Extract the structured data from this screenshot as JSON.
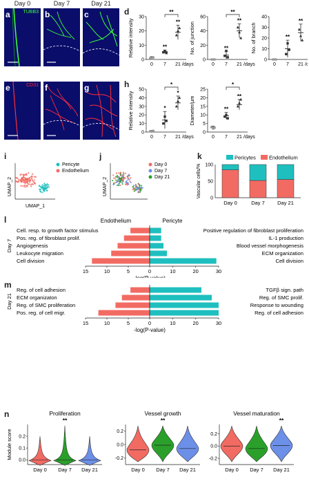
{
  "colors": {
    "day0": "#f26b63",
    "day7": "#2aa02b",
    "day21": "#6c8fe8",
    "pericyte": "#1fbfbf",
    "endothelium": "#f26b63",
    "tubb3": "#3cff3c",
    "cd31": "#ff2d3c",
    "nuclei": "#0a0d6a"
  },
  "micrographs": {
    "days": [
      "Day 0",
      "Day 7",
      "Day 21"
    ],
    "panels": [
      {
        "letter": "a",
        "stain": "TUBB3",
        "day_index": 0
      },
      {
        "letter": "b",
        "stain": "",
        "day_index": 1
      },
      {
        "letter": "c",
        "stain": "",
        "day_index": 2
      },
      {
        "letter": "e",
        "stain": "CD31",
        "day_index": 0
      },
      {
        "letter": "f",
        "stain": "",
        "day_index": 1
      },
      {
        "letter": "g",
        "stain": "",
        "day_index": 2
      }
    ]
  },
  "panel_d": {
    "letter": "d",
    "x_ticks": [
      "0",
      "7",
      "21"
    ],
    "x_unit": "/days",
    "plots": [
      {
        "ylabel": "Relative intensity",
        "y_ticks": [
          "0",
          "10",
          "20",
          "30"
        ],
        "ylim": [
          0,
          30
        ],
        "points": [
          [
            1,
            0.5,
            1.5
          ],
          [
            5,
            6,
            4.5
          ],
          [
            17,
            20,
            22
          ]
        ],
        "mean": [
          1,
          5.5,
          19
        ],
        "sd": [
          1,
          1,
          5
        ],
        "stars": [
          "",
          "**",
          "**"
        ],
        "bracket": {
          "from": 1,
          "to": 2,
          "label": "**"
        }
      },
      {
        "ylabel": "No. of junction",
        "y_ticks": [
          "0",
          "20",
          "40",
          "60"
        ],
        "ylim": [
          0,
          60
        ],
        "points": [
          [
            0,
            0,
            0
          ],
          [
            5,
            12,
            3
          ],
          [
            45,
            38,
            30
          ]
        ],
        "mean": [
          0,
          6,
          40
        ],
        "sd": [
          0,
          5,
          10
        ],
        "stars": [
          "",
          "**",
          "**"
        ],
        "bracket": {
          "from": 1,
          "to": 2,
          "label": "**"
        }
      },
      {
        "ylabel": "No. of branch",
        "y_ticks": [
          "0",
          "10",
          "20",
          "30",
          "40"
        ],
        "ylim": [
          0,
          40
        ],
        "points": [
          [
            0,
            0,
            0
          ],
          [
            5,
            15,
            9
          ],
          [
            28,
            22,
            18
          ]
        ],
        "mean": [
          0,
          10,
          25
        ],
        "sd": [
          0,
          8,
          8
        ],
        "stars": [
          "",
          "**",
          "**"
        ],
        "bracket": null
      }
    ]
  },
  "panel_h": {
    "letter": "h",
    "x_ticks": [
      "0",
      "7",
      "21"
    ],
    "x_unit": "/days",
    "plots": [
      {
        "ylabel": "Relative intensity",
        "y_ticks": [
          "0",
          "10",
          "20",
          "30",
          "40",
          "50"
        ],
        "ylim": [
          0,
          50
        ],
        "points": [
          [
            1,
            0.5,
            1.5
          ],
          [
            10,
            18,
            13
          ],
          [
            30,
            36,
            40
          ]
        ],
        "mean": [
          1,
          14,
          34
        ],
        "sd": [
          1,
          10,
          8
        ],
        "stars": [
          "",
          "*",
          "*"
        ],
        "bracket": {
          "from": 1,
          "to": 2,
          "label": "*"
        }
      },
      {
        "ylabel": "Diameter/µm",
        "y_ticks": [
          "0",
          "5",
          "10",
          "15",
          "20",
          "25"
        ],
        "ylim": [
          0,
          25
        ],
        "points": [
          [
            3,
            2,
            2.5
          ],
          [
            9,
            10,
            8
          ],
          [
            15,
            17,
            19
          ]
        ],
        "mean": [
          2.5,
          9.5,
          16
        ],
        "sd": [
          1,
          2,
          3
        ],
        "stars": [
          "",
          "**",
          "**"
        ],
        "bracket": {
          "from": 1,
          "to": 2,
          "label": "*"
        }
      }
    ]
  },
  "panel_i": {
    "letter": "i",
    "xlabel": "UMAP_1",
    "ylabel": "UMAP_2",
    "legend": [
      "Pericyte",
      "Endothelium"
    ]
  },
  "panel_j": {
    "letter": "j",
    "ylabel": "UMAP_2",
    "legend": [
      "Day 0",
      "Day 7",
      "Day 21"
    ]
  },
  "panel_k": {
    "letter": "k",
    "chart_data": {
      "type": "bar",
      "categories": [
        "Day 0",
        "Day 7",
        "Day 21"
      ],
      "series": [
        {
          "name": "Endothelium",
          "values": [
            84,
            52,
            55
          ]
        },
        {
          "name": "Pericytes",
          "values": [
            16,
            48,
            45
          ]
        }
      ],
      "ylabel": "Vascular cells/%",
      "y_ticks": [
        "0",
        "50",
        "100"
      ],
      "ylim": [
        0,
        100
      ]
    }
  },
  "panel_l": {
    "letter": "l",
    "side_label": "Day 7",
    "header_left": "Endothelium",
    "header_right": "Pericyte",
    "xlabel": "-log(P-value)",
    "ticks_left": [
      "15",
      "10",
      "5",
      "0"
    ],
    "ticks_right": [
      "10",
      "20",
      "30"
    ],
    "chart_data": {
      "type": "bar",
      "left_terms": [
        "Cell. resp. to growth factor stimulus",
        "Pos. reg. of fibroblast prolif.",
        "Angiogenesis",
        "Leukocyte migration",
        "Cell division"
      ],
      "left_values": [
        4.5,
        6,
        7.5,
        9,
        13.5
      ],
      "right_terms": [
        "Positive regulation of fibroblast proliferation",
        "IL-1 production",
        "Blood vessel morphogenesis",
        "ECM organization",
        "Cell division"
      ],
      "right_values": [
        5,
        5,
        6,
        7.5,
        29
      ]
    }
  },
  "panel_m": {
    "letter": "m",
    "side_label": "Day 21",
    "xlabel": "-log(P-value)",
    "ticks_left": [
      "15",
      "10",
      "5",
      "0"
    ],
    "ticks_right": [
      "10",
      "20",
      "30"
    ],
    "chart_data": {
      "type": "bar",
      "left_terms": [
        "Reg. of cell adhesion",
        "ECM organizaton",
        "Reg. of SMC proliferation",
        "Pos. reg. of cell migr."
      ],
      "left_values": [
        4.5,
        6.5,
        8,
        12
      ],
      "right_terms": [
        "TGFβ sign. path",
        "Reg. of SMC prolif.",
        "Response to wounding",
        "Reg. of cell adhesion"
      ],
      "right_values": [
        22.5,
        27,
        30,
        30
      ]
    }
  },
  "panel_n": {
    "letter": "n",
    "ylabel": "Module score",
    "categories": [
      "Day 0",
      "Day 7",
      "Day 21"
    ],
    "violins": [
      {
        "title": "Proliferation",
        "y_ticks": [
          "0.0",
          "0.1",
          "0.2"
        ],
        "ylim": [
          -0.04,
          0.3
        ],
        "stars": "**",
        "star_index": 1,
        "medians": [
          0.0,
          0.0,
          0.0
        ]
      },
      {
        "title": "Vessel growth",
        "y_ticks": [
          "-0.2",
          "0.0",
          "0.2"
        ],
        "ylim": [
          -0.3,
          0.3
        ],
        "stars": "**",
        "star_index": 1,
        "medians": [
          -0.08,
          -0.01,
          -0.06
        ]
      },
      {
        "title": "Vessel maturation",
        "y_ticks": [
          "-0.2",
          "0.0",
          "0.2"
        ],
        "ylim": [
          -0.3,
          0.35
        ],
        "stars": "**",
        "star_index": 2,
        "medians": [
          0.0,
          -0.04,
          0.01
        ]
      }
    ]
  }
}
